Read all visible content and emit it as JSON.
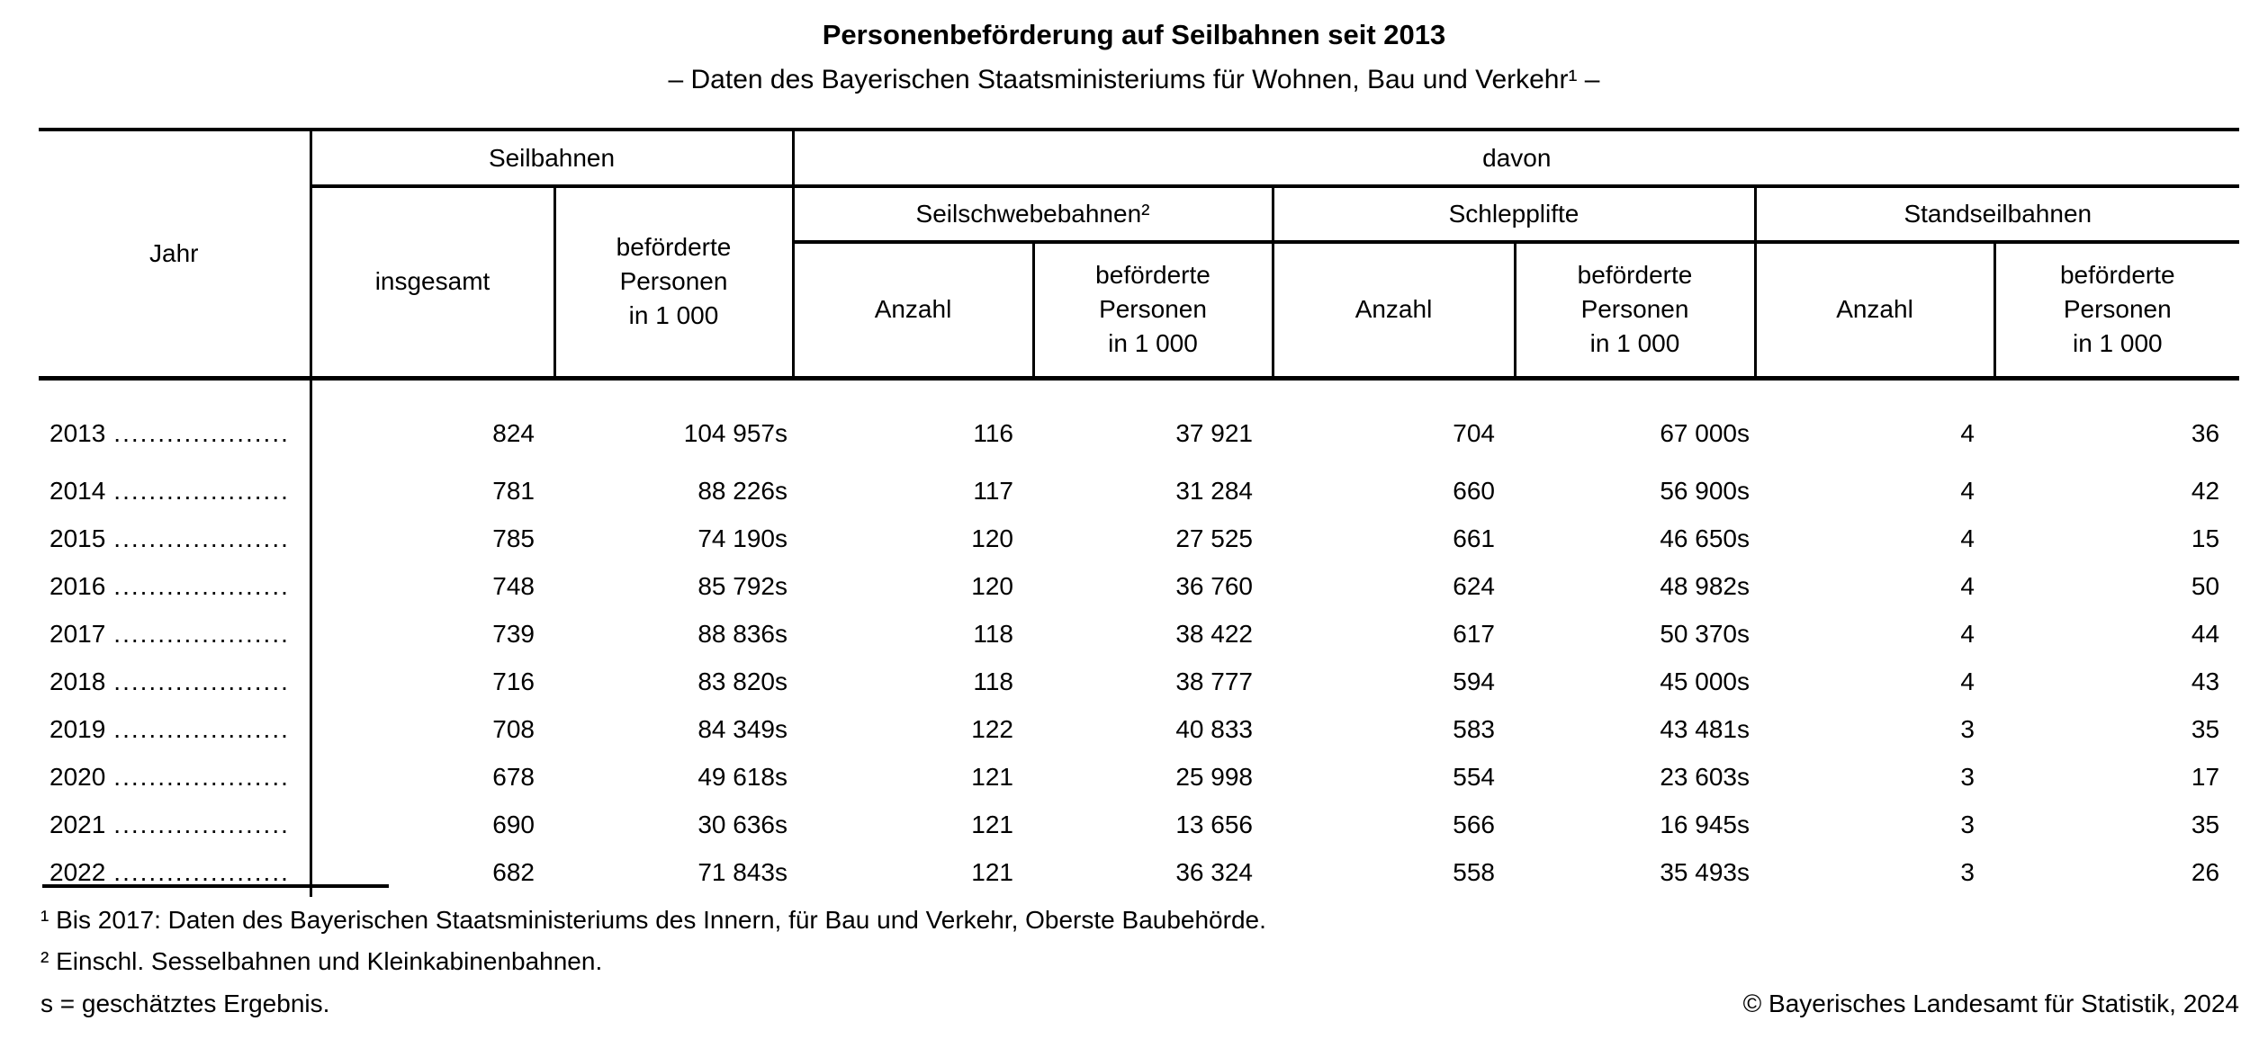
{
  "title": "Personenbeförderung auf Seilbahnen seit 2013",
  "subtitle": "– Daten des Bayerischen Staatsministeriums für Wohnen, Bau und Verkehr¹ –",
  "table": {
    "header": {
      "jahr": "Jahr",
      "group_seilbahnen": "Seilbahnen",
      "group_davon": "davon",
      "insgesamt": "insgesamt",
      "befoerderte_personen": "beförderte\nPersonen\nin 1 000",
      "sub_seilschwebebahnen": "Seilschwebebahnen²",
      "sub_schlepplifte": "Schlepplifte",
      "sub_standseilbahnen": "Standseilbahnen",
      "anzahl": "Anzahl"
    },
    "leader_dots": "....................",
    "rows": [
      {
        "jahr": "2013",
        "seilbahnen_insgesamt": "824",
        "seilbahnen_befoerderte": "104 957s",
        "seilschwebebahnen_anzahl": "116",
        "seilschwebebahnen_befoerderte": "37 921",
        "schlepplifte_anzahl": "704",
        "schlepplifte_befoerderte": "67 000s",
        "standseilbahnen_anzahl": "4",
        "standseilbahnen_befoerderte": "36"
      },
      {
        "jahr": "2014",
        "seilbahnen_insgesamt": "781",
        "seilbahnen_befoerderte": "88 226s",
        "seilschwebebahnen_anzahl": "117",
        "seilschwebebahnen_befoerderte": "31 284",
        "schlepplifte_anzahl": "660",
        "schlepplifte_befoerderte": "56 900s",
        "standseilbahnen_anzahl": "4",
        "standseilbahnen_befoerderte": "42"
      },
      {
        "jahr": "2015",
        "seilbahnen_insgesamt": "785",
        "seilbahnen_befoerderte": "74 190s",
        "seilschwebebahnen_anzahl": "120",
        "seilschwebebahnen_befoerderte": "27 525",
        "schlepplifte_anzahl": "661",
        "schlepplifte_befoerderte": "46 650s",
        "standseilbahnen_anzahl": "4",
        "standseilbahnen_befoerderte": "15"
      },
      {
        "jahr": "2016",
        "seilbahnen_insgesamt": "748",
        "seilbahnen_befoerderte": "85 792s",
        "seilschwebebahnen_anzahl": "120",
        "seilschwebebahnen_befoerderte": "36 760",
        "schlepplifte_anzahl": "624",
        "schlepplifte_befoerderte": "48 982s",
        "standseilbahnen_anzahl": "4",
        "standseilbahnen_befoerderte": "50"
      },
      {
        "jahr": "2017",
        "seilbahnen_insgesamt": "739",
        "seilbahnen_befoerderte": "88 836s",
        "seilschwebebahnen_anzahl": "118",
        "seilschwebebahnen_befoerderte": "38 422",
        "schlepplifte_anzahl": "617",
        "schlepplifte_befoerderte": "50 370s",
        "standseilbahnen_anzahl": "4",
        "standseilbahnen_befoerderte": "44"
      },
      {
        "jahr": "2018",
        "seilbahnen_insgesamt": "716",
        "seilbahnen_befoerderte": "83 820s",
        "seilschwebebahnen_anzahl": "118",
        "seilschwebebahnen_befoerderte": "38 777",
        "schlepplifte_anzahl": "594",
        "schlepplifte_befoerderte": "45 000s",
        "standseilbahnen_anzahl": "4",
        "standseilbahnen_befoerderte": "43"
      },
      {
        "jahr": "2019",
        "seilbahnen_insgesamt": "708",
        "seilbahnen_befoerderte": "84 349s",
        "seilschwebebahnen_anzahl": "122",
        "seilschwebebahnen_befoerderte": "40 833",
        "schlepplifte_anzahl": "583",
        "schlepplifte_befoerderte": "43 481s",
        "standseilbahnen_anzahl": "3",
        "standseilbahnen_befoerderte": "35"
      },
      {
        "jahr": "2020",
        "seilbahnen_insgesamt": "678",
        "seilbahnen_befoerderte": "49 618s",
        "seilschwebebahnen_anzahl": "121",
        "seilschwebebahnen_befoerderte": "25 998",
        "schlepplifte_anzahl": "554",
        "schlepplifte_befoerderte": "23 603s",
        "standseilbahnen_anzahl": "3",
        "standseilbahnen_befoerderte": "17"
      },
      {
        "jahr": "2021",
        "seilbahnen_insgesamt": "690",
        "seilbahnen_befoerderte": "30 636s",
        "seilschwebebahnen_anzahl": "121",
        "seilschwebebahnen_befoerderte": "13 656",
        "schlepplifte_anzahl": "566",
        "schlepplifte_befoerderte": "16 945s",
        "standseilbahnen_anzahl": "3",
        "standseilbahnen_befoerderte": "35"
      },
      {
        "jahr": "2022",
        "seilbahnen_insgesamt": "682",
        "seilbahnen_befoerderte": "71 843s",
        "seilschwebebahnen_anzahl": "121",
        "seilschwebebahnen_befoerderte": "36 324",
        "schlepplifte_anzahl": "558",
        "schlepplifte_befoerderte": "35 493s",
        "standseilbahnen_anzahl": "3",
        "standseilbahnen_befoerderte": "26"
      }
    ]
  },
  "footnotes": [
    "¹ Bis 2017: Daten des Bayerischen Staatsministeriums des Innern, für Bau und Verkehr, Oberste Baubehörde.",
    "² Einschl. Sesselbahnen und Kleinkabinenbahnen.",
    "s = geschätztes Ergebnis."
  ],
  "copyright": "© Bayerisches Landesamt für Statistik, 2024"
}
